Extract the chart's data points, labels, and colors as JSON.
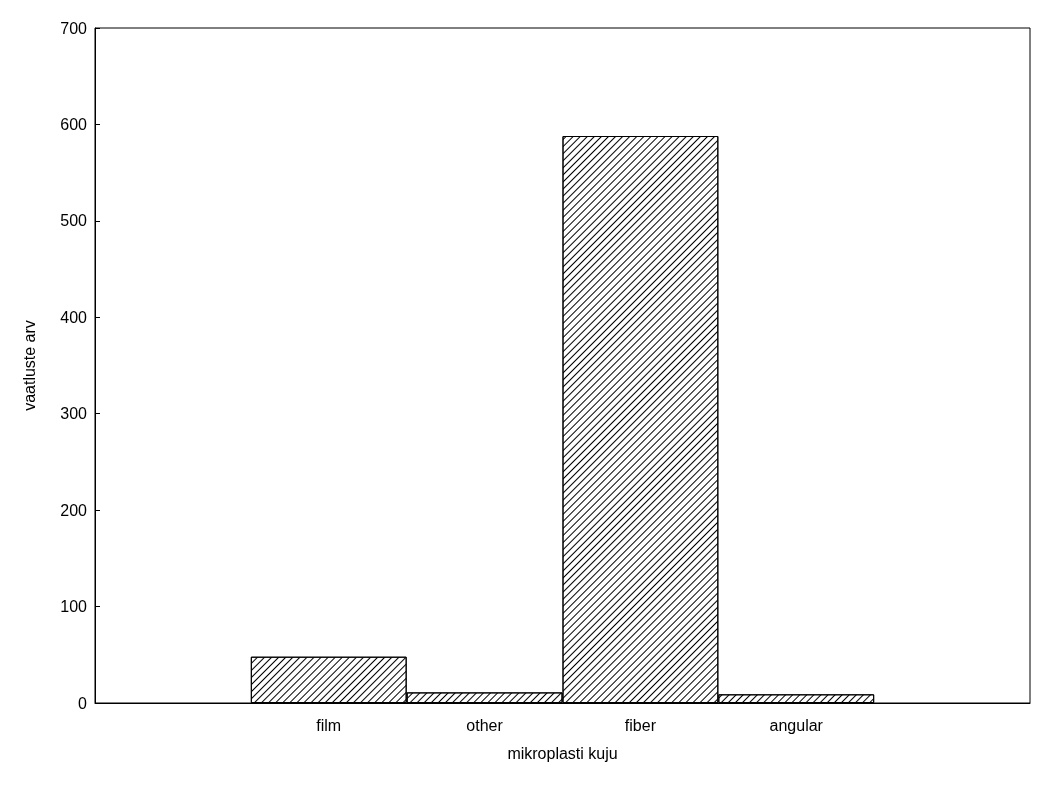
{
  "chart_data": {
    "type": "bar",
    "xlabel": "mikroplasti kuju",
    "ylabel": "vaatluste arv",
    "categories": [
      null,
      "film",
      "other",
      "fiber",
      "angular",
      null
    ],
    "values": [
      null,
      48,
      11,
      588,
      9,
      null
    ],
    "color": "#000000",
    "ylim": [
      0,
      700
    ],
    "yticks": [
      0,
      100,
      200,
      300,
      400,
      500,
      600,
      700
    ],
    "grid": false
  }
}
